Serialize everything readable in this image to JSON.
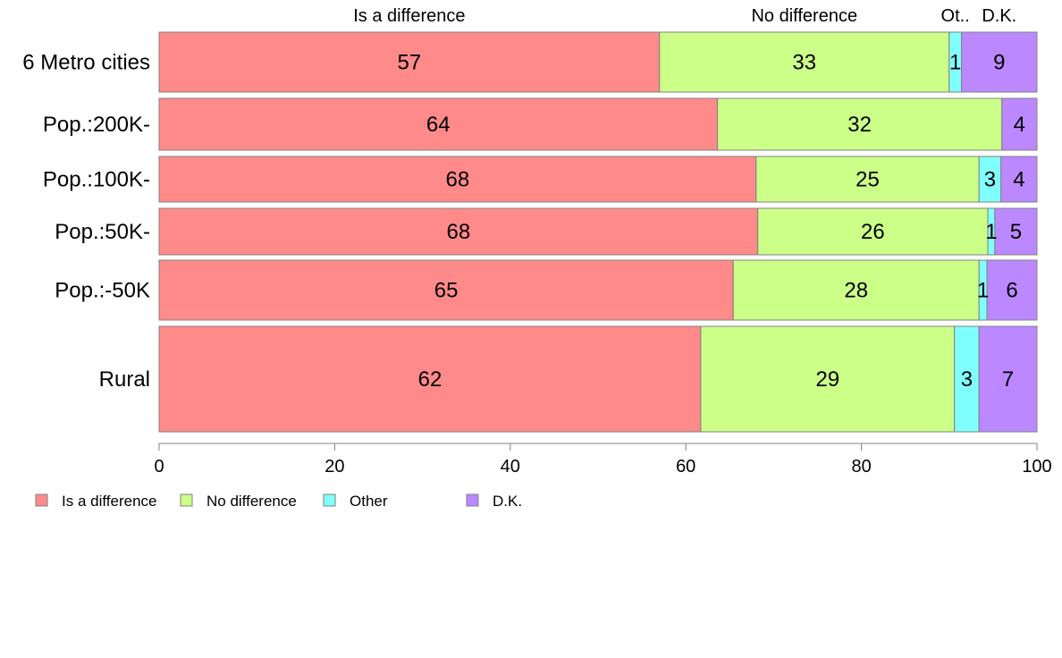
{
  "colors": {
    "Is a difference": "#ff8a8a",
    "No difference": "#ccff88",
    "Other": "#80ffff",
    "D.K.": "#bb88ff",
    "border": "#808080",
    "axis": "#808080"
  },
  "column_labels": [
    "Is a difference",
    "No difference",
    "Ot..",
    "D.K."
  ],
  "legend": [
    "Is a difference",
    "No difference",
    "Other",
    "D.K."
  ],
  "chart_data": {
    "type": "bar",
    "orientation": "horizontal",
    "stacked": true,
    "categories": [
      "6 Metro cities",
      "Pop.:200K-",
      "Pop.:100K-",
      "Pop.:50K-",
      "Pop.:-50K",
      "Rural"
    ],
    "series": [
      {
        "name": "Is a difference",
        "values": [
          57,
          63.6,
          68,
          68.2,
          65.4,
          61.7
        ],
        "labels": [
          "57",
          "64",
          "68",
          "68",
          "65",
          "62"
        ]
      },
      {
        "name": "No difference",
        "values": [
          33,
          32.4,
          25.4,
          26.2,
          28,
          28.9
        ],
        "labels": [
          "33",
          "32",
          "25",
          "26",
          "28",
          "29"
        ]
      },
      {
        "name": "Other",
        "values": [
          1.4,
          0,
          2.5,
          0.8,
          0.9,
          2.8
        ],
        "labels": [
          "1",
          "",
          "3",
          "1",
          "1",
          "3"
        ]
      },
      {
        "name": "D.K.",
        "values": [
          8.6,
          4,
          4.1,
          4.8,
          5.7,
          6.6
        ],
        "labels": [
          "9",
          "4",
          "4",
          "5",
          "6",
          "7"
        ]
      }
    ],
    "xlim": [
      0,
      100
    ],
    "xticks": [
      "0",
      "20",
      "40",
      "60",
      "80",
      "100"
    ],
    "legend_position": "bottom-left"
  }
}
